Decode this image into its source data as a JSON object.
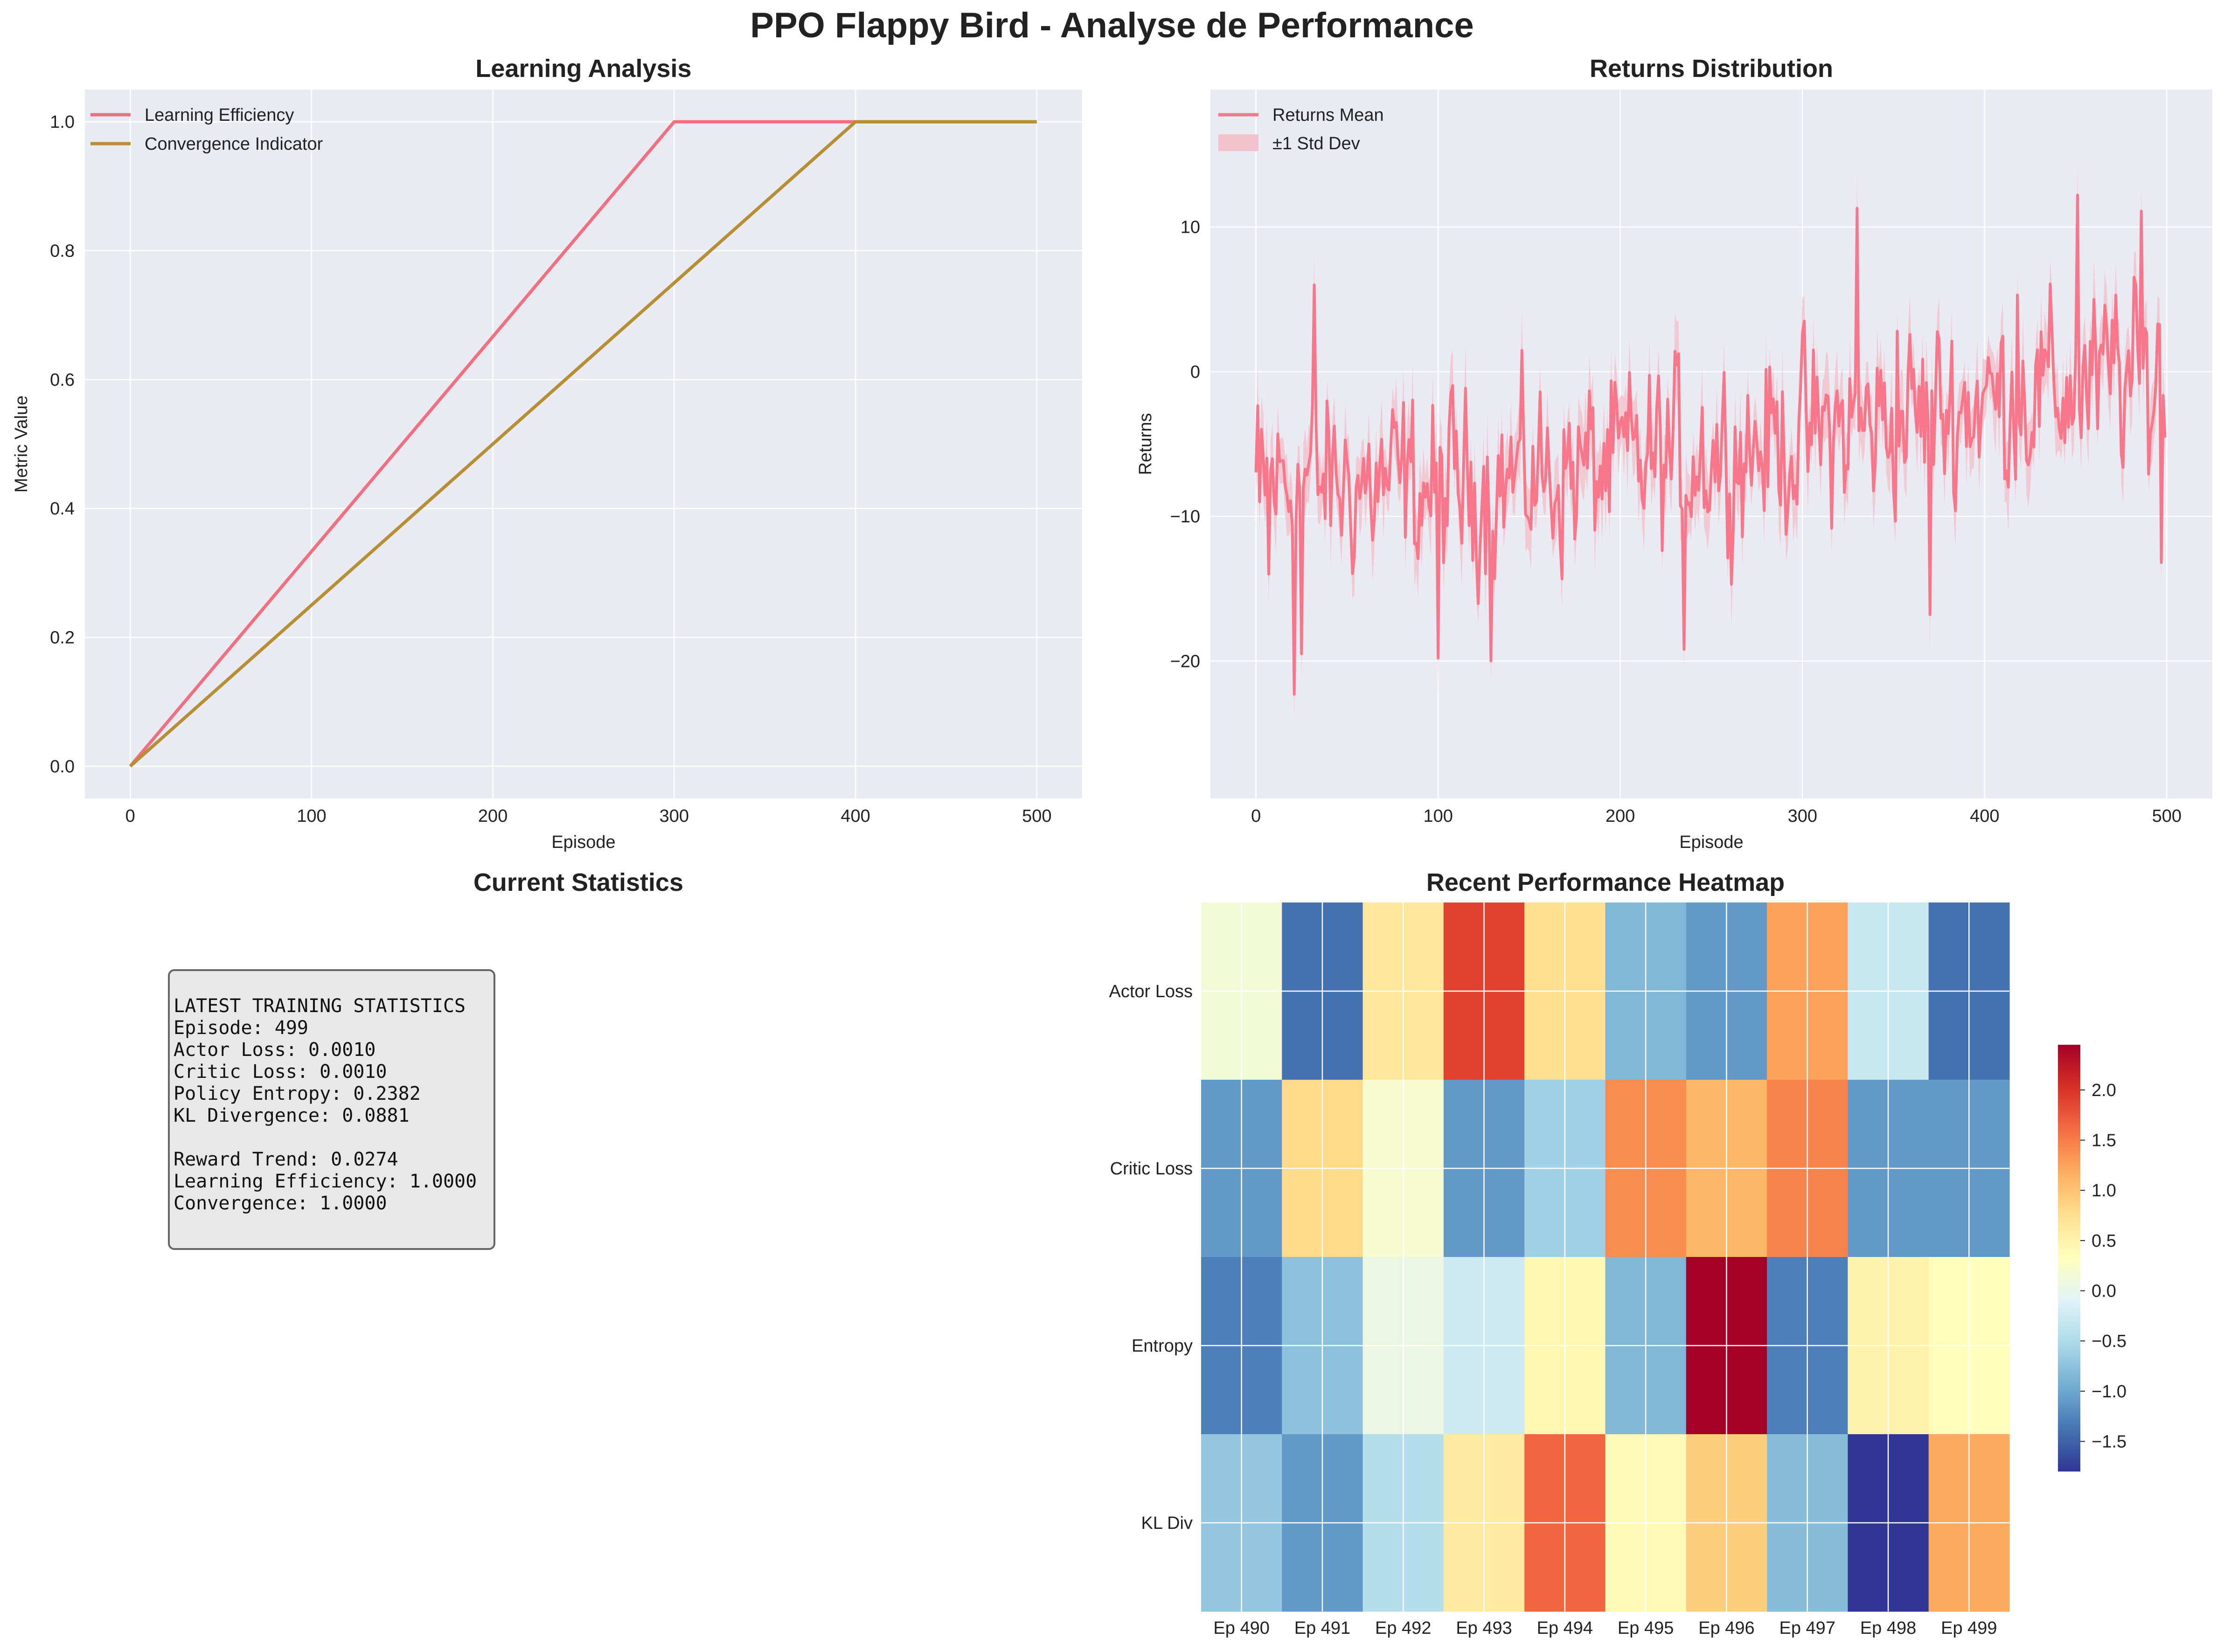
{
  "figure": {
    "title": "PPO Flappy Bird - Analyse de Performance"
  },
  "chart_data": [
    {
      "id": "learning",
      "type": "line",
      "title": "Learning Analysis",
      "xlabel": "Episode",
      "ylabel": "Metric Value",
      "xlim": [
        -25,
        525
      ],
      "ylim": [
        -0.05,
        1.05
      ],
      "xticks": [
        0,
        100,
        200,
        300,
        400,
        500
      ],
      "yticks": [
        0.0,
        0.2,
        0.4,
        0.6,
        0.8,
        1.0
      ],
      "grid": true,
      "legend": "top-left",
      "series": [
        {
          "name": "Learning Efficiency",
          "color": "#f0707f",
          "x": [
            0,
            300,
            500
          ],
          "y": [
            0.0,
            1.0,
            1.0
          ]
        },
        {
          "name": "Convergence Indicator",
          "color": "#b68f34",
          "x": [
            0,
            400,
            500
          ],
          "y": [
            0.0,
            1.0,
            1.0
          ]
        }
      ]
    },
    {
      "id": "returns",
      "type": "line",
      "title": "Returns Distribution",
      "xlabel": "Episode",
      "ylabel": "Returns",
      "xlim": [
        -25,
        525
      ],
      "ylim": [
        -29.5,
        19.5
      ],
      "xticks": [
        0,
        100,
        200,
        300,
        400,
        500
      ],
      "yticks": [
        -20,
        -10,
        0,
        10
      ],
      "grid": true,
      "legend": "top-left",
      "series": [
        {
          "name": "Returns Mean",
          "color": "#f7768a"
        },
        {
          "name": "±1 Std Dev",
          "color": "#f2c3cc",
          "kind": "band"
        }
      ],
      "x_range": [
        0,
        499
      ],
      "trend": {
        "x": [
          0,
          100,
          200,
          300,
          400,
          499
        ],
        "y": [
          -7.5,
          -8.0,
          -6.5,
          -4.5,
          -2.0,
          -0.5
        ]
      },
      "highlights": {
        "x": [
          2,
          7,
          21,
          25,
          32,
          100,
          129,
          235,
          330,
          352,
          370,
          418,
          451,
          460,
          472,
          486,
          495,
          497
        ],
        "y": [
          -9,
          -14,
          -22.3,
          -19.5,
          6.0,
          -19.8,
          -20.0,
          -19.2,
          11.3,
          2.8,
          -16.8,
          5.3,
          12.2,
          5.0,
          5.3,
          11.1,
          3.3,
          -13.2
        ]
      },
      "noise_amplitude": 4.5,
      "std_band_halfwidth": 2.2
    },
    {
      "id": "heatmap",
      "type": "heatmap",
      "title": "Recent Performance Heatmap",
      "columns": [
        "Ep 490",
        "Ep 491",
        "Ep 492",
        "Ep 493",
        "Ep 494",
        "Ep 495",
        "Ep 496",
        "Ep 497",
        "Ep 498",
        "Ep 499"
      ],
      "rows": [
        "Actor Loss",
        "Critic Loss",
        "Entropy",
        "KL Div"
      ],
      "values": [
        [
          0.15,
          -1.4,
          0.65,
          1.9,
          0.75,
          -0.85,
          -1.1,
          1.25,
          -0.3,
          -1.4
        ],
        [
          -1.1,
          0.8,
          0.2,
          -1.1,
          -0.6,
          1.4,
          1.1,
          1.45,
          -1.1,
          -1.1
        ],
        [
          -1.3,
          -0.75,
          0.05,
          -0.25,
          0.45,
          -0.85,
          2.45,
          -1.3,
          0.5,
          0.35
        ],
        [
          -0.7,
          -1.1,
          -0.45,
          0.6,
          1.65,
          0.4,
          0.9,
          -0.8,
          -1.8,
          1.2
        ]
      ],
      "colormap": "RdYlBu_r",
      "vmin": -1.8,
      "vmax": 2.45,
      "colorbar_ticks": [
        2.0,
        1.5,
        1.0,
        0.5,
        0.0,
        -0.5,
        -1.0,
        -1.5
      ],
      "colorbar_tick_labels": [
        "2.0",
        "1.5",
        "1.0",
        "0.5",
        "0.0",
        "−0.5",
        "−1.0",
        "−1.5"
      ]
    }
  ],
  "stats": {
    "title": "Current Statistics",
    "lines": [
      "LATEST TRAINING STATISTICS",
      "Episode: 499",
      "Actor Loss: 0.0010",
      "Critic Loss: 0.0010",
      "Policy Entropy: 0.2382",
      "KL Divergence: 0.0881",
      "",
      "Reward Trend: 0.0274",
      "Learning Efficiency: 1.0000",
      "Convergence: 1.0000"
    ]
  }
}
